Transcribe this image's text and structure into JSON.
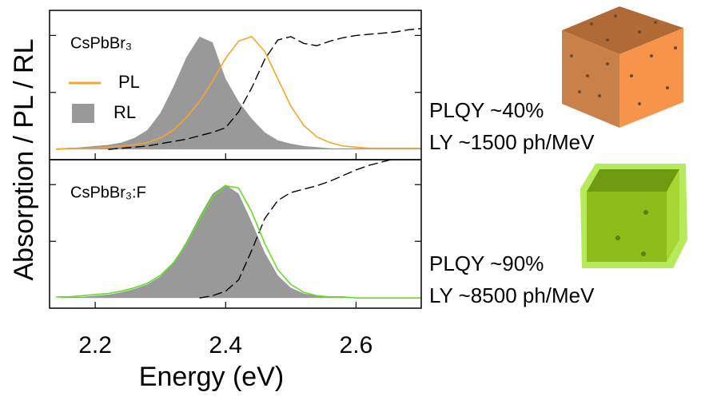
{
  "chart_data": [
    {
      "type": "line",
      "label": "CsPbBr₃",
      "ylabel": "Absorption / PL / RL",
      "legend": true,
      "annotations": [
        {
          "text": "PLQY ~40%",
          "color": "#b8733f"
        },
        {
          "text": "LY ~1500 ph/MeV",
          "color": "#b8733f"
        }
      ],
      "xlim": [
        2.13,
        2.7
      ],
      "xticks": [
        2.2,
        2.4,
        2.6
      ],
      "ylim": [
        -0.09,
        1.22
      ],
      "yticks": [
        0.5,
        1
      ],
      "x": [
        2.14,
        2.16,
        2.18,
        2.2,
        2.22,
        2.24,
        2.26,
        2.28,
        2.3,
        2.32,
        2.34,
        2.36,
        2.38,
        2.4,
        2.42,
        2.44,
        2.46,
        2.48,
        2.5,
        2.52,
        2.54,
        2.56,
        2.58,
        2.6,
        2.62,
        2.64,
        2.66,
        2.68,
        2.7
      ],
      "series": [
        {
          "name": "RL",
          "style": "area",
          "color": "#999999",
          "values": [
            0.01,
            0.01,
            0.02,
            0.03,
            0.04,
            0.06,
            0.1,
            0.17,
            0.32,
            0.55,
            0.81,
            0.99,
            0.94,
            0.62,
            0.42,
            0.27,
            0.15,
            0.08,
            0.05,
            0.03,
            0.02,
            0.01,
            0.01,
            0.01,
            0.01,
            0.01,
            0.01,
            0.01,
            0.01
          ]
        },
        {
          "style": "dashed",
          "color": "#000000",
          "values": [
            null,
            null,
            null,
            null,
            0,
            0.01,
            0.02,
            0.03,
            0.05,
            0.07,
            0.09,
            0.12,
            0.15,
            0.19,
            0.33,
            0.54,
            0.79,
            0.96,
            0.99,
            0.93,
            0.91,
            0.95,
            0.98,
            1,
            1.01,
            1.02,
            1.03,
            1.05,
            1.06
          ]
        },
        {
          "name": "PL",
          "style": "line",
          "color": "#f5a52a",
          "values": [
            0,
            0.01,
            0.01,
            0.01,
            0.02,
            0.03,
            0.04,
            0.06,
            0.1,
            0.17,
            0.28,
            0.42,
            0.6,
            0.8,
            0.95,
            0.99,
            0.86,
            0.62,
            0.38,
            0.21,
            0.11,
            0.06,
            0.03,
            0.02,
            0.01,
            0.01,
            0.01,
            0.01,
            0.01
          ]
        }
      ]
    },
    {
      "type": "line",
      "label": "CsPbBr₃:F",
      "xlabel": "Energy (eV)",
      "annotations": [
        {
          "text": "PLQY ~90%",
          "color": "#7aab1e"
        },
        {
          "text": "LY ~8500 ph/MeV",
          "color": "#7aab1e"
        }
      ],
      "xlim": [
        2.13,
        2.7
      ],
      "xticks": [
        2.2,
        2.4,
        2.6
      ],
      "ylim": [
        -0.09,
        1.22
      ],
      "yticks": [
        0.5,
        1
      ],
      "x": [
        2.14,
        2.16,
        2.18,
        2.2,
        2.22,
        2.24,
        2.26,
        2.28,
        2.3,
        2.32,
        2.34,
        2.36,
        2.38,
        2.4,
        2.42,
        2.44,
        2.46,
        2.48,
        2.5,
        2.52,
        2.54,
        2.56,
        2.58,
        2.6,
        2.62,
        2.64,
        2.66,
        2.68,
        2.7
      ],
      "series": [
        {
          "style": "area",
          "color": "#999999",
          "values": [
            0,
            0.01,
            0.01,
            0.02,
            0.03,
            0.05,
            0.08,
            0.12,
            0.19,
            0.31,
            0.5,
            0.72,
            0.92,
            1,
            0.92,
            0.67,
            0.4,
            0.2,
            0.09,
            0.04,
            0.02,
            0.01,
            0.01,
            0,
            0,
            0,
            0,
            0,
            0
          ]
        },
        {
          "style": "dashed",
          "color": "#000000",
          "values": [
            null,
            null,
            null,
            null,
            null,
            null,
            null,
            null,
            null,
            null,
            null,
            0,
            0.02,
            0.06,
            0.16,
            0.42,
            0.7,
            0.86,
            0.93,
            0.96,
            0.99,
            1.03,
            1.08,
            1.13,
            1.17,
            1.2,
            1.23,
            1.26,
            1.28
          ]
        },
        {
          "style": "line",
          "color": "#66dd22",
          "values": [
            0.01,
            0.01,
            0.02,
            0.03,
            0.04,
            0.06,
            0.09,
            0.13,
            0.2,
            0.31,
            0.48,
            0.69,
            0.89,
            0.99,
            0.97,
            0.76,
            0.48,
            0.25,
            0.12,
            0.05,
            0.02,
            0.01,
            0.01,
            0,
            0,
            0,
            0,
            0,
            0
          ]
        }
      ]
    }
  ]
}
